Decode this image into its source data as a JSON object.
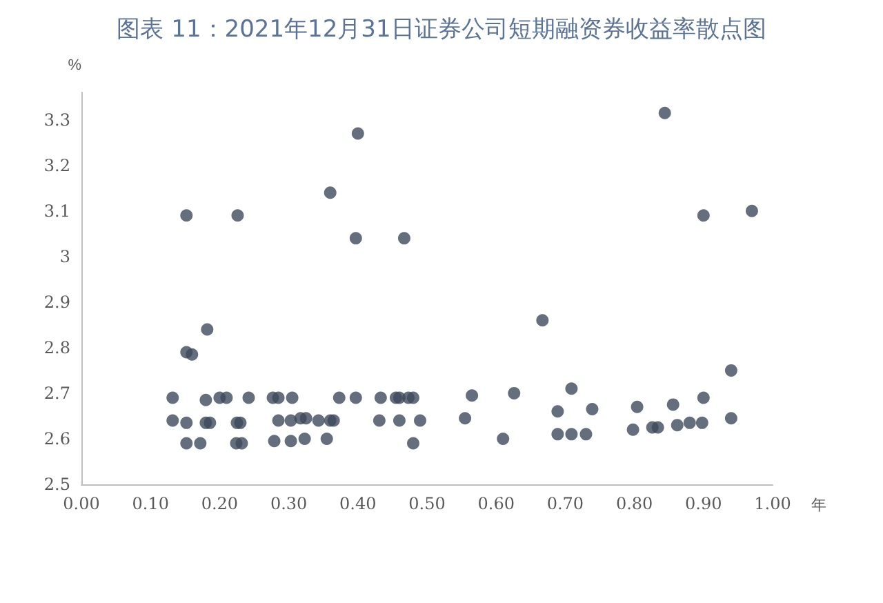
{
  "chart_data": {
    "type": "scatter",
    "title": "图表 11：2021年12月31日证券公司短期融资券收益率散点图",
    "xlabel": "年",
    "ylabel": "%",
    "x": [
      0.132,
      0.132,
      0.152,
      0.152,
      0.16,
      0.152,
      0.152,
      0.172,
      0.182,
      0.18,
      0.18,
      0.186,
      0.2,
      0.21,
      0.225,
      0.23,
      0.224,
      0.232,
      0.226,
      0.242,
      0.277,
      0.285,
      0.279,
      0.285,
      0.305,
      0.303,
      0.303,
      0.317,
      0.325,
      0.323,
      0.343,
      0.355,
      0.36,
      0.36,
      0.365,
      0.373,
      0.397,
      0.397,
      0.4,
      0.433,
      0.431,
      0.455,
      0.46,
      0.46,
      0.467,
      0.473,
      0.48,
      0.48,
      0.49,
      0.555,
      0.565,
      0.61,
      0.626,
      0.667,
      0.689,
      0.689,
      0.709,
      0.709,
      0.73,
      0.739,
      0.798,
      0.804,
      0.826,
      0.834,
      0.844,
      0.856,
      0.862,
      0.88,
      0.898,
      0.9,
      0.9,
      0.94,
      0.94,
      0.97
    ],
    "values": [
      2.69,
      2.64,
      3.09,
      2.79,
      2.785,
      2.635,
      2.59,
      2.59,
      2.84,
      2.685,
      2.635,
      2.635,
      2.69,
      2.69,
      2.635,
      2.635,
      2.59,
      2.59,
      3.09,
      2.69,
      2.69,
      2.69,
      2.595,
      2.64,
      2.69,
      2.64,
      2.595,
      2.645,
      2.645,
      2.6,
      2.64,
      2.6,
      3.14,
      2.64,
      2.64,
      2.69,
      2.69,
      3.04,
      3.27,
      2.69,
      2.64,
      2.69,
      2.69,
      2.64,
      3.04,
      2.69,
      2.69,
      2.59,
      2.64,
      2.645,
      2.695,
      2.6,
      2.7,
      2.86,
      2.66,
      2.61,
      2.71,
      2.61,
      2.61,
      2.665,
      2.62,
      2.67,
      2.625,
      2.625,
      3.315,
      2.675,
      2.63,
      2.635,
      2.635,
      3.09,
      2.69,
      2.75,
      2.645,
      3.1
    ],
    "color": "#3d4a5d",
    "marker": "circle",
    "grid": false,
    "xlim": [
      0,
      1
    ],
    "xticks": [
      {
        "value": 0,
        "label": "0.00"
      },
      {
        "value": 0.1,
        "label": "0.10"
      },
      {
        "value": 0.2,
        "label": "0.20"
      },
      {
        "value": 0.3,
        "label": "0.30"
      },
      {
        "value": 0.4,
        "label": "0.40"
      },
      {
        "value": 0.5,
        "label": "0.50"
      },
      {
        "value": 0.6,
        "label": "0.60"
      },
      {
        "value": 0.7,
        "label": "0.70"
      },
      {
        "value": 0.8,
        "label": "0.80"
      },
      {
        "value": 0.9,
        "label": "0.90"
      },
      {
        "value": 1,
        "label": "1.00"
      }
    ],
    "ylim": [
      2.5,
      3.36
    ],
    "yticks": [
      2.5,
      2.6,
      2.7,
      2.8,
      2.9,
      3,
      3.1,
      3.2,
      3.3
    ]
  }
}
